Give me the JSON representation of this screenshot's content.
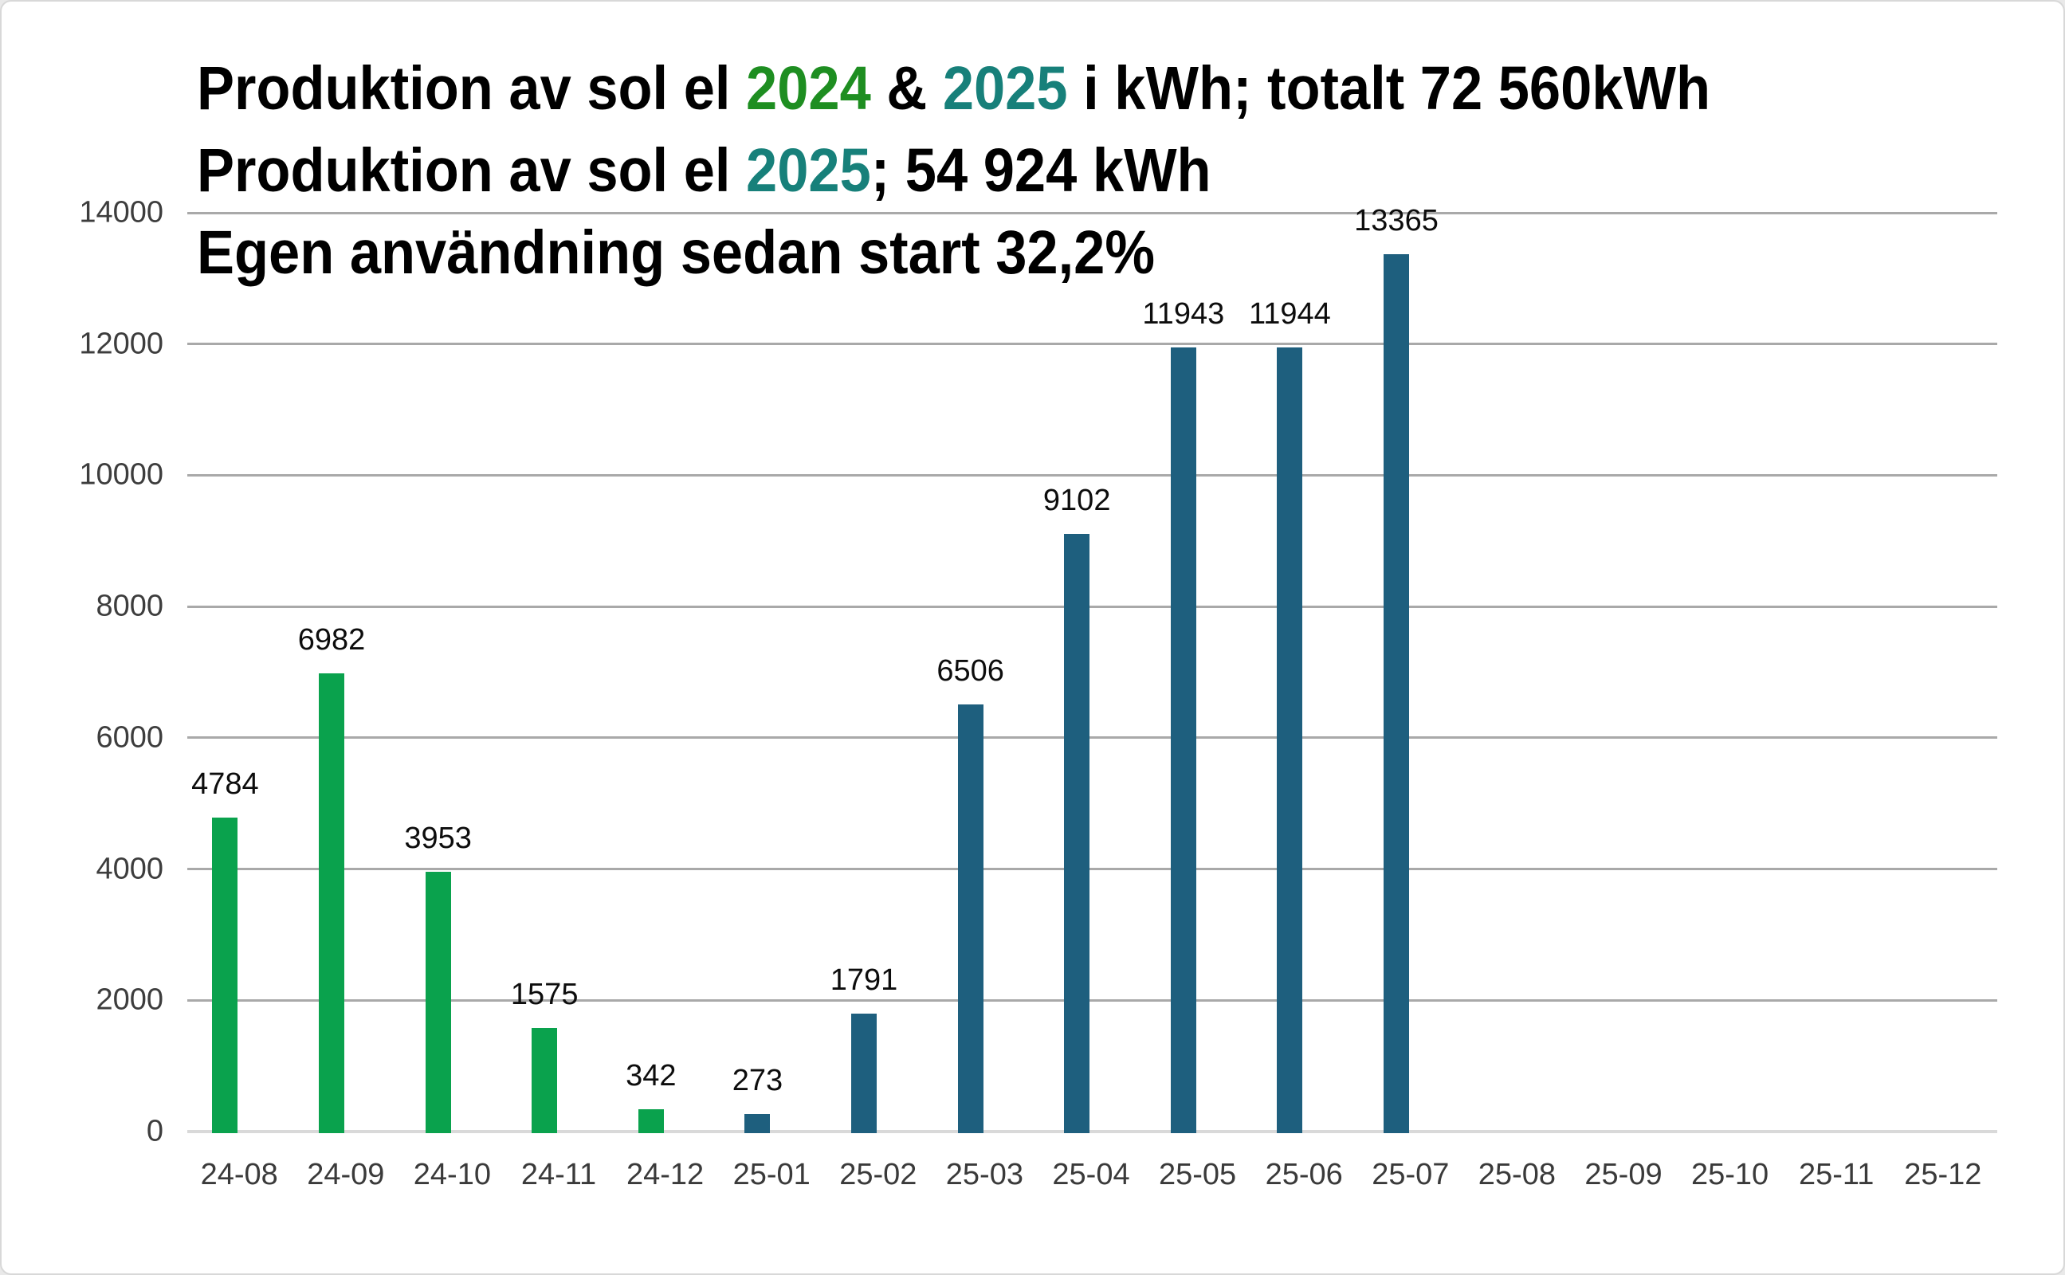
{
  "page": {
    "background": "#ffffff",
    "frame_border_color": "#d8d8d8"
  },
  "title": {
    "lines": [
      {
        "segments": [
          {
            "text": "Produktion av sol el ",
            "color": "#000000"
          },
          {
            "text": "2024",
            "color": "#1e8e21"
          },
          {
            "text": " & ",
            "color": "#000000"
          },
          {
            "text": "2025",
            "color": "#17807a"
          },
          {
            "text": " i kWh; totalt 72 560kWh",
            "color": "#000000"
          }
        ]
      },
      {
        "segments": [
          {
            "text": "Produktion av sol el ",
            "color": "#000000"
          },
          {
            "text": "2025",
            "color": "#17807a"
          },
          {
            "text": "; 54 924 kWh",
            "color": "#000000"
          }
        ]
      },
      {
        "segments": [
          {
            "text": "Egen användning sedan start 32,2%",
            "color": "#000000"
          }
        ]
      }
    ]
  },
  "chart_data": {
    "type": "bar",
    "title": "Produktion av sol el 2024 & 2025 i kWh; totalt 72 560kWh",
    "subtitle": "Produktion av sol el 2025; 54 924 kWh",
    "subtitle2": "Egen användning sedan start 32,2%",
    "totals": {
      "total_all": "72 560 kWh",
      "total_2025": "54 924 kWh",
      "own_use_since_start": "32,2%"
    },
    "categories": [
      "24-08",
      "24-09",
      "24-10",
      "24-11",
      "24-12",
      "25-01",
      "25-02",
      "25-03",
      "25-04",
      "25-05",
      "25-06",
      "25-07",
      "25-08",
      "25-09",
      "25-10",
      "25-11",
      "25-12"
    ],
    "series": [
      {
        "name": "2024",
        "color": "#0aa24d",
        "values": [
          4784,
          6982,
          3953,
          1575,
          342,
          null,
          null,
          null,
          null,
          null,
          null,
          null,
          null,
          null,
          null,
          null,
          null
        ]
      },
      {
        "name": "2025",
        "color": "#1e5f7e",
        "values": [
          null,
          null,
          null,
          null,
          null,
          273,
          1791,
          6506,
          9102,
          11943,
          11944,
          13365,
          null,
          null,
          null,
          null,
          null
        ]
      }
    ],
    "xlabel": "",
    "ylabel": "",
    "ylim": [
      0,
      14000
    ],
    "yticks": [
      0,
      2000,
      4000,
      6000,
      8000,
      10000,
      12000,
      14000
    ],
    "grid": "horizontal-only",
    "legend": "none",
    "data_labels": true
  },
  "axis_style": {
    "gridline_color": "#a9a9a9",
    "baseline_color": "#d9d9d9",
    "y_tick_label_color": "#3d3d3d",
    "x_tick_label_color": "#3a3a3a",
    "value_label_color": "#0d0d0d"
  }
}
